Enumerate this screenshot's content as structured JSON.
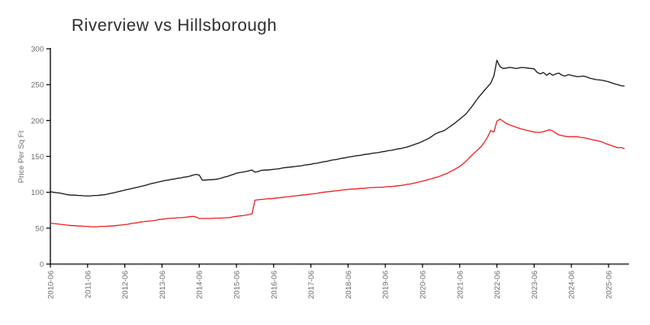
{
  "title": "Riverview vs Hillsborough",
  "chart_data": {
    "type": "line",
    "title": "Riverview vs Hillsborough",
    "xlabel": "",
    "ylabel": "Price Per Sq Ft",
    "ylim": [
      0,
      300
    ],
    "y_ticks": [
      0,
      50,
      100,
      150,
      200,
      250,
      300
    ],
    "x_tick_labels": [
      "2010-06",
      "2011-06",
      "2012-06",
      "2013-06",
      "2014-06",
      "2015-06",
      "2016-06",
      "2017-06",
      "2018-06",
      "2019-06",
      "2020-06",
      "2021-06",
      "2022-06",
      "2023-06",
      "2024-06",
      "2025-06"
    ],
    "x_start": "2010-06",
    "x_end": "2025-11",
    "x_frequency": "monthly",
    "grid": false,
    "legend_position": "none",
    "axis_color": "#000000",
    "tick_label_color": "#6e6e6e",
    "series": [
      {
        "name": "Riverview",
        "color": "#1b1b1b",
        "values": [
          101,
          100,
          99.5,
          99,
          98,
          97,
          96.5,
          96,
          96,
          95.5,
          95.5,
          95,
          95,
          95,
          95.5,
          95.5,
          96,
          96.5,
          97,
          98,
          99,
          100,
          101,
          102,
          103,
          104,
          105,
          106,
          107,
          108,
          109,
          110,
          111.5,
          112.5,
          113.5,
          114.5,
          115.5,
          116.5,
          117,
          118,
          118.5,
          119.5,
          120,
          121,
          121.5,
          122.5,
          124,
          125,
          124,
          117,
          117,
          117.5,
          117.5,
          118,
          118.5,
          119.5,
          121,
          122,
          123.5,
          125,
          126.5,
          127.5,
          128,
          129,
          130,
          131,
          128,
          129,
          130.5,
          131,
          131,
          131.5,
          132,
          132.5,
          133,
          134,
          134.5,
          135,
          135.5,
          136,
          136.5,
          137,
          138,
          138.5,
          139,
          140,
          140.5,
          141.5,
          142.5,
          143,
          144,
          145,
          145.5,
          146.5,
          147.5,
          148,
          149,
          149.5,
          150.5,
          151,
          151.5,
          152.5,
          153,
          153.5,
          154.5,
          155,
          155.5,
          156.5,
          157,
          158,
          158.5,
          159.5,
          160.5,
          161,
          162,
          163,
          164.5,
          166,
          167.5,
          169,
          171,
          173,
          175,
          178,
          181,
          183,
          184.5,
          186,
          189,
          192,
          195,
          198.5,
          202,
          205.5,
          209,
          214.5,
          220,
          226,
          232,
          237,
          242,
          247,
          252,
          262,
          284,
          275,
          272.5,
          273,
          274,
          273.5,
          272.5,
          273,
          274,
          273.5,
          273,
          272.5,
          272,
          267,
          265,
          267,
          263,
          266,
          263,
          265,
          266,
          263,
          262,
          264,
          263,
          262,
          261,
          261.5,
          262,
          260.5,
          259,
          258,
          257,
          256.5,
          256,
          255,
          254,
          252.5,
          251,
          250,
          248.5,
          248
        ]
      },
      {
        "name": "Hillsborough",
        "color": "#ee2222",
        "values": [
          57,
          56.5,
          56,
          55.5,
          55,
          54.5,
          54,
          53.5,
          53.5,
          53,
          53,
          52.5,
          52.5,
          52,
          52,
          52,
          52.5,
          52.5,
          52.5,
          53,
          53,
          53.5,
          54,
          54.5,
          55,
          55.5,
          56.5,
          57,
          57.5,
          58.5,
          59,
          59.5,
          60,
          60.5,
          61,
          62,
          62.5,
          63,
          63.5,
          64,
          64,
          64.5,
          64.5,
          65,
          65.5,
          66,
          66.5,
          65.5,
          63.5,
          63.5,
          63.5,
          63.5,
          63.5,
          64,
          64,
          64,
          64.5,
          64.5,
          65,
          66,
          66.5,
          67,
          67.5,
          68,
          69,
          70,
          89,
          89.5,
          90,
          90.5,
          91,
          91,
          91.5,
          92,
          92.5,
          93,
          93.5,
          94,
          94.5,
          95,
          95.5,
          96,
          96.5,
          97,
          97.5,
          98,
          98.5,
          99.5,
          100,
          100.5,
          101,
          101.5,
          102,
          102.5,
          103,
          103.5,
          104,
          104.5,
          104.5,
          105,
          105.5,
          105.5,
          106,
          106.5,
          106.5,
          107,
          107,
          107,
          107.5,
          108,
          108,
          108.5,
          109,
          109.5,
          110,
          111,
          111.5,
          112.5,
          113.5,
          114.5,
          115.5,
          116.5,
          118,
          119,
          120.5,
          121.5,
          123,
          125,
          126.5,
          129,
          131,
          133.5,
          136,
          139.5,
          143,
          147.5,
          152,
          156,
          160,
          164,
          170,
          177,
          186,
          184,
          199,
          202,
          199,
          196,
          194,
          192.5,
          191,
          189.5,
          188,
          187,
          186,
          185,
          184,
          183.5,
          183.5,
          184.5,
          186,
          187,
          185.5,
          182.5,
          180,
          179,
          178,
          177.5,
          177.5,
          177.5,
          177.5,
          176.5,
          176,
          175,
          174,
          173,
          172.5,
          171,
          170,
          168,
          166.5,
          165,
          163.5,
          162,
          162.5,
          161
        ]
      }
    ]
  }
}
